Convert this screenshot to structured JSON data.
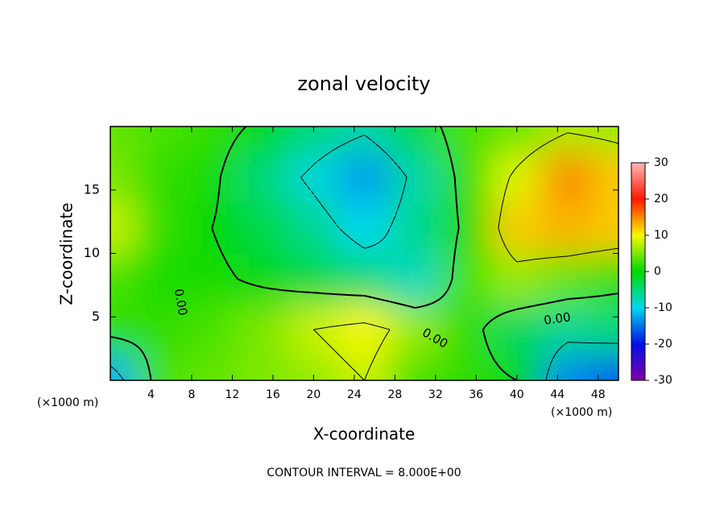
{
  "chart_data": {
    "type": "contour",
    "title": "zonal velocity",
    "x_label": "X-coordinate",
    "y_label": "Z-coordinate",
    "x_unit": "(×1000 m)",
    "note": "CONTOUR INTERVAL = 8.000E+00",
    "x": [
      0,
      5,
      10,
      15,
      20,
      25,
      30,
      35,
      40,
      45,
      50
    ],
    "y": [
      0,
      4,
      8,
      12,
      16,
      20
    ],
    "z": [
      [
        -12,
        3,
        4,
        5,
        6,
        8,
        3,
        2,
        0,
        -14,
        -16
      ],
      [
        2,
        2,
        3,
        5,
        8,
        10,
        6,
        2,
        -4,
        -6,
        -5
      ],
      [
        3,
        1,
        1,
        -1,
        -3,
        -5,
        -8,
        3,
        6,
        4,
        2
      ],
      [
        8,
        2,
        0,
        -3,
        -6,
        -10,
        -6,
        1,
        12,
        13,
        12
      ],
      [
        5,
        2,
        1,
        -5,
        -9,
        -13,
        -7,
        2,
        9,
        15,
        12
      ],
      [
        4,
        3,
        2,
        -1,
        -5,
        -7,
        -3,
        3,
        4,
        7,
        6
      ]
    ],
    "xlim": [
      0,
      50
    ],
    "ylim": [
      0,
      20
    ],
    "xticks": [
      4,
      8,
      12,
      16,
      20,
      24,
      28,
      32,
      36,
      40,
      44,
      48
    ],
    "yticks": [
      5,
      10,
      15
    ],
    "clim": [
      -30,
      30
    ],
    "cticks": [
      -30,
      -20,
      -10,
      0,
      10,
      20,
      30
    ],
    "colors": [
      "#8000a8",
      "#0010e8",
      "#00d8f0",
      "#00d800",
      "#f8f800",
      "#ff1800",
      "#ffb8b8"
    ],
    "contour_levels": [
      -8,
      0,
      8
    ],
    "contour_labels": [
      "0.00",
      "0.00",
      "0.00"
    ]
  }
}
